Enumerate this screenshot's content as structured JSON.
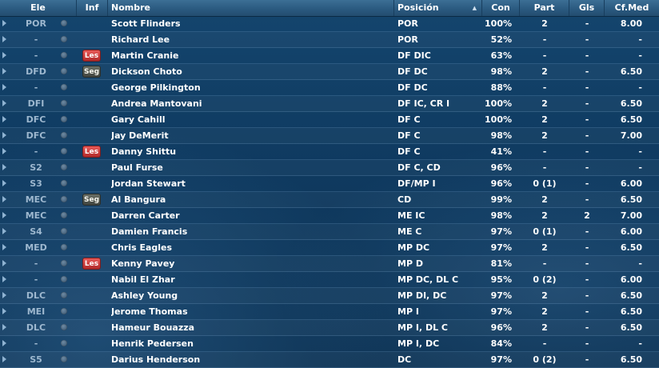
{
  "columns": {
    "ele": "Ele",
    "inf": "Inf",
    "nombre": "Nombre",
    "posicion": "Posición",
    "con": "Con",
    "part": "Part",
    "gls": "Gls",
    "cfmed": "Cf.Med"
  },
  "sort": {
    "column": "posicion",
    "direction": "ascending",
    "arrow_glyph": "▲"
  },
  "badge_colors": {
    "Les": "#c73a3a",
    "Seg": "#555a52"
  },
  "rows": [
    {
      "ele": "POR",
      "inf": "",
      "nombre": "Scott Flinders",
      "posicion": "POR",
      "con": "100%",
      "part": "2",
      "gls": "-",
      "cfmed": "8.00"
    },
    {
      "ele": "-",
      "inf": "",
      "nombre": "Richard Lee",
      "posicion": "POR",
      "con": "52%",
      "part": "-",
      "gls": "-",
      "cfmed": "-"
    },
    {
      "ele": "-",
      "inf": "Les",
      "nombre": "Martin Cranie",
      "posicion": "DF DIC",
      "con": "63%",
      "part": "-",
      "gls": "-",
      "cfmed": "-"
    },
    {
      "ele": "DFD",
      "inf": "Seg",
      "nombre": "Dickson Choto",
      "posicion": "DF DC",
      "con": "98%",
      "part": "2",
      "gls": "-",
      "cfmed": "6.50"
    },
    {
      "ele": "-",
      "inf": "",
      "nombre": "George Pilkington",
      "posicion": "DF DC",
      "con": "88%",
      "part": "-",
      "gls": "-",
      "cfmed": "-"
    },
    {
      "ele": "DFI",
      "inf": "",
      "nombre": "Andrea Mantovani",
      "posicion": "DF IC, CR I",
      "con": "100%",
      "part": "2",
      "gls": "-",
      "cfmed": "6.50"
    },
    {
      "ele": "DFC",
      "inf": "",
      "nombre": "Gary Cahill",
      "posicion": "DF C",
      "con": "100%",
      "part": "2",
      "gls": "-",
      "cfmed": "6.50"
    },
    {
      "ele": "DFC",
      "inf": "",
      "nombre": "Jay DeMerit",
      "posicion": "DF C",
      "con": "98%",
      "part": "2",
      "gls": "-",
      "cfmed": "7.00"
    },
    {
      "ele": "-",
      "inf": "Les",
      "nombre": "Danny Shittu",
      "posicion": "DF C",
      "con": "41%",
      "part": "-",
      "gls": "-",
      "cfmed": "-"
    },
    {
      "ele": "S2",
      "inf": "",
      "nombre": "Paul Furse",
      "posicion": "DF C, CD",
      "con": "96%",
      "part": "-",
      "gls": "-",
      "cfmed": "-"
    },
    {
      "ele": "S3",
      "inf": "",
      "nombre": "Jordan Stewart",
      "posicion": "DF/MP I",
      "con": "96%",
      "part": "0 (1)",
      "gls": "-",
      "cfmed": "6.00"
    },
    {
      "ele": "MEC",
      "inf": "Seg",
      "nombre": "Al Bangura",
      "posicion": "CD",
      "con": "99%",
      "part": "2",
      "gls": "-",
      "cfmed": "6.50"
    },
    {
      "ele": "MEC",
      "inf": "",
      "nombre": "Darren Carter",
      "posicion": "ME IC",
      "con": "98%",
      "part": "2",
      "gls": "2",
      "cfmed": "7.00"
    },
    {
      "ele": "S4",
      "inf": "",
      "nombre": "Damien Francis",
      "posicion": "ME C",
      "con": "97%",
      "part": "0 (1)",
      "gls": "-",
      "cfmed": "6.00"
    },
    {
      "ele": "MED",
      "inf": "",
      "nombre": "Chris Eagles",
      "posicion": "MP DC",
      "con": "97%",
      "part": "2",
      "gls": "-",
      "cfmed": "6.50"
    },
    {
      "ele": "-",
      "inf": "Les",
      "nombre": "Kenny Pavey",
      "posicion": "MP D",
      "con": "81%",
      "part": "-",
      "gls": "-",
      "cfmed": "-"
    },
    {
      "ele": "-",
      "inf": "",
      "nombre": "Nabil El Zhar",
      "posicion": "MP DC, DL C",
      "con": "95%",
      "part": "0 (2)",
      "gls": "-",
      "cfmed": "6.00"
    },
    {
      "ele": "DLC",
      "inf": "",
      "nombre": "Ashley Young",
      "posicion": "MP DI, DC",
      "con": "97%",
      "part": "2",
      "gls": "-",
      "cfmed": "6.50"
    },
    {
      "ele": "MEI",
      "inf": "",
      "nombre": "Jerome Thomas",
      "posicion": "MP I",
      "con": "97%",
      "part": "2",
      "gls": "-",
      "cfmed": "6.50"
    },
    {
      "ele": "DLC",
      "inf": "",
      "nombre": "Hameur Bouazza",
      "posicion": "MP I, DL C",
      "con": "96%",
      "part": "2",
      "gls": "-",
      "cfmed": "6.50"
    },
    {
      "ele": "-",
      "inf": "",
      "nombre": "Henrik Pedersen",
      "posicion": "MP I, DC",
      "con": "84%",
      "part": "-",
      "gls": "-",
      "cfmed": "-"
    },
    {
      "ele": "S5",
      "inf": "",
      "nombre": "Darius Henderson",
      "posicion": "DC",
      "con": "97%",
      "part": "0 (2)",
      "gls": "-",
      "cfmed": "6.50"
    }
  ]
}
